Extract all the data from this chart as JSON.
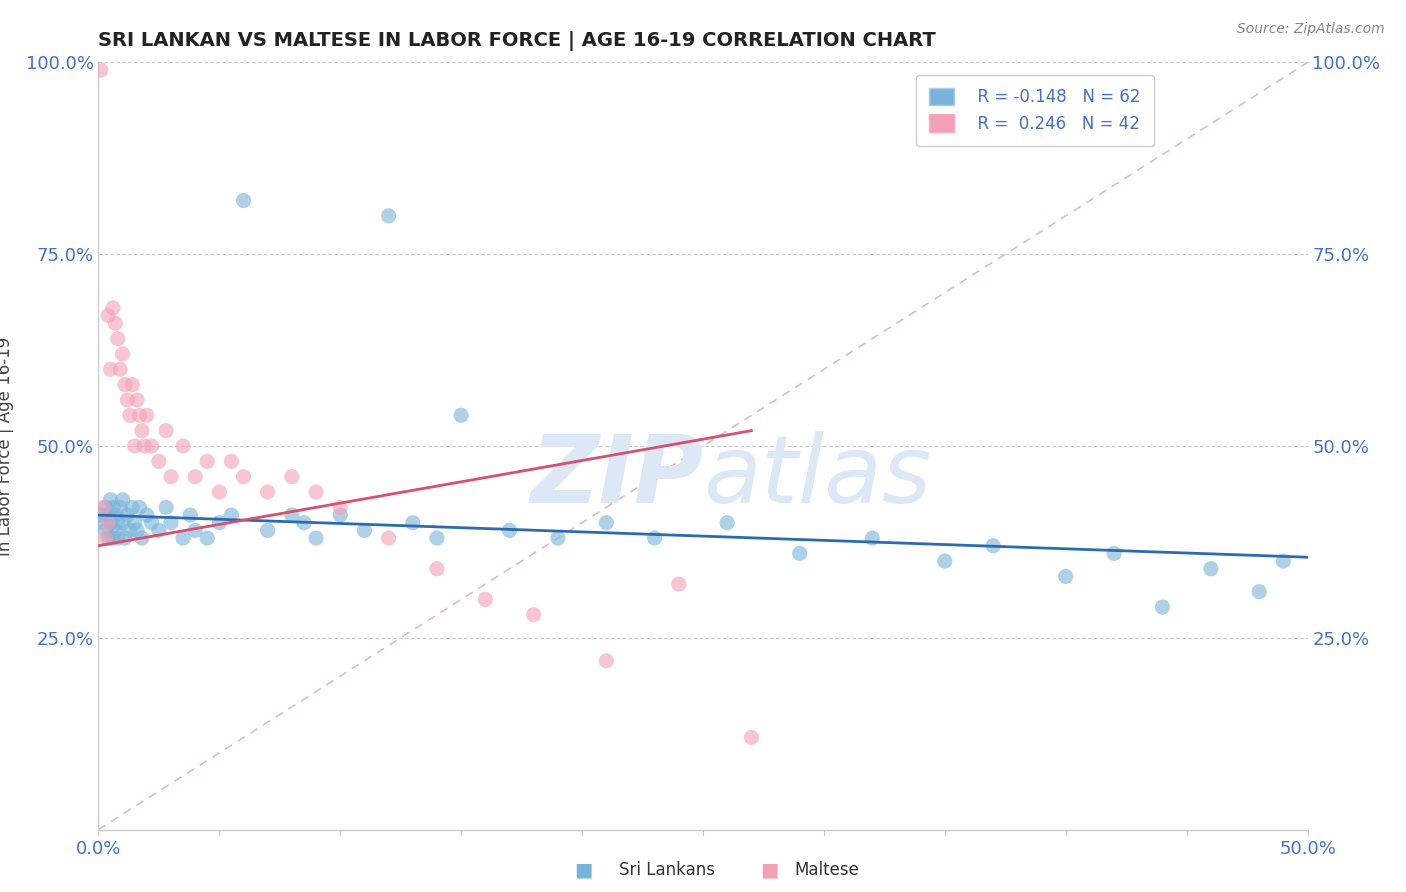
{
  "title": "SRI LANKAN VS MALTESE IN LABOR FORCE | AGE 16-19 CORRELATION CHART",
  "source_text": "Source: ZipAtlas.com",
  "ylabel": "In Labor Force | Age 16-19",
  "xlim": [
    0.0,
    0.5
  ],
  "ylim": [
    0.0,
    1.0
  ],
  "sri_lankans_R": -0.148,
  "sri_lankans_N": 62,
  "maltese_R": 0.246,
  "maltese_N": 42,
  "blue_color": "#7ab3d9",
  "pink_color": "#f4a0b5",
  "blue_line_color": "#2b6cb0",
  "pink_line_color": "#d94f70",
  "diag_color": "#ccaaaa",
  "watermark_color": "#dce8f5",
  "sri_lankans_x": [
    0.001,
    0.002,
    0.003,
    0.003,
    0.004,
    0.004,
    0.005,
    0.005,
    0.006,
    0.006,
    0.007,
    0.007,
    0.008,
    0.008,
    0.009,
    0.01,
    0.01,
    0.011,
    0.012,
    0.013,
    0.014,
    0.015,
    0.016,
    0.017,
    0.018,
    0.02,
    0.022,
    0.025,
    0.028,
    0.03,
    0.035,
    0.038,
    0.04,
    0.045,
    0.05,
    0.055,
    0.06,
    0.07,
    0.08,
    0.085,
    0.09,
    0.1,
    0.11,
    0.12,
    0.13,
    0.14,
    0.15,
    0.17,
    0.19,
    0.21,
    0.23,
    0.26,
    0.29,
    0.32,
    0.35,
    0.37,
    0.4,
    0.42,
    0.44,
    0.46,
    0.48,
    0.49
  ],
  "sri_lankans_y": [
    0.41,
    0.4,
    0.39,
    0.42,
    0.38,
    0.41,
    0.4,
    0.43,
    0.38,
    0.42,
    0.39,
    0.41,
    0.4,
    0.38,
    0.42,
    0.4,
    0.43,
    0.38,
    0.41,
    0.39,
    0.42,
    0.4,
    0.39,
    0.42,
    0.38,
    0.41,
    0.4,
    0.39,
    0.42,
    0.4,
    0.38,
    0.41,
    0.39,
    0.38,
    0.4,
    0.41,
    0.82,
    0.39,
    0.41,
    0.4,
    0.38,
    0.41,
    0.39,
    0.8,
    0.4,
    0.38,
    0.54,
    0.39,
    0.38,
    0.4,
    0.38,
    0.4,
    0.36,
    0.38,
    0.35,
    0.37,
    0.33,
    0.36,
    0.29,
    0.34,
    0.31,
    0.35
  ],
  "maltese_x": [
    0.001,
    0.002,
    0.003,
    0.004,
    0.004,
    0.005,
    0.006,
    0.007,
    0.008,
    0.009,
    0.01,
    0.011,
    0.012,
    0.013,
    0.014,
    0.015,
    0.016,
    0.017,
    0.018,
    0.019,
    0.02,
    0.022,
    0.025,
    0.028,
    0.03,
    0.035,
    0.04,
    0.045,
    0.05,
    0.055,
    0.06,
    0.07,
    0.08,
    0.09,
    0.1,
    0.12,
    0.14,
    0.16,
    0.18,
    0.21,
    0.24,
    0.27
  ],
  "maltese_y": [
    0.99,
    0.42,
    0.38,
    0.4,
    0.67,
    0.6,
    0.68,
    0.66,
    0.64,
    0.6,
    0.62,
    0.58,
    0.56,
    0.54,
    0.58,
    0.5,
    0.56,
    0.54,
    0.52,
    0.5,
    0.54,
    0.5,
    0.48,
    0.52,
    0.46,
    0.5,
    0.46,
    0.48,
    0.44,
    0.48,
    0.46,
    0.44,
    0.46,
    0.44,
    0.42,
    0.38,
    0.34,
    0.3,
    0.28,
    0.22,
    0.32,
    0.12
  ]
}
